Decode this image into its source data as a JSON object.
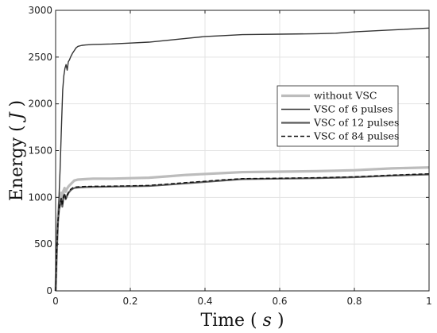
{
  "chart_data": {
    "type": "line",
    "xlabel": "Time",
    "xlabel_unit": "s",
    "ylabel": "Energy",
    "ylabel_unit": "J",
    "xlim": [
      0,
      1
    ],
    "ylim": [
      0,
      3000
    ],
    "xticks": [
      0,
      0.2,
      0.4,
      0.6,
      0.8,
      1
    ],
    "xtick_labels": [
      "0",
      "0.2",
      "0.4",
      "0.6",
      "0.8",
      "1"
    ],
    "yticks": [
      0,
      500,
      1000,
      1500,
      2000,
      2500,
      3000
    ],
    "ytick_labels": [
      "0",
      "500",
      "1000",
      "1500",
      "2000",
      "2500",
      "3000"
    ],
    "grid": true,
    "legend_position": "right",
    "series": [
      {
        "name": "without VSC",
        "color": "#bcbcbc",
        "style": "solid-thick",
        "x": [
          0,
          0.003,
          0.006,
          0.009,
          0.012,
          0.015,
          0.018,
          0.021,
          0.024,
          0.027,
          0.03,
          0.035,
          0.04,
          0.045,
          0.05,
          0.06,
          0.08,
          0.1,
          0.15,
          0.2,
          0.25,
          0.3,
          0.35,
          0.4,
          0.45,
          0.5,
          0.6,
          0.7,
          0.75,
          0.8,
          0.9,
          1.0
        ],
        "y": [
          0,
          450,
          780,
          920,
          1000,
          1050,
          980,
          1070,
          1100,
          1060,
          1090,
          1120,
          1140,
          1160,
          1180,
          1190,
          1195,
          1200,
          1200,
          1205,
          1210,
          1225,
          1240,
          1250,
          1260,
          1270,
          1275,
          1280,
          1285,
          1290,
          1310,
          1320
        ]
      },
      {
        "name": "VSC of 6 pulses",
        "color": "#333333",
        "style": "solid-thin",
        "x": [
          0,
          0.004,
          0.008,
          0.012,
          0.016,
          0.019,
          0.022,
          0.025,
          0.028,
          0.031,
          0.034,
          0.037,
          0.04,
          0.045,
          0.05,
          0.055,
          0.06,
          0.07,
          0.08,
          0.1,
          0.15,
          0.2,
          0.25,
          0.3,
          0.35,
          0.4,
          0.45,
          0.5,
          0.6,
          0.7,
          0.75,
          0.8,
          0.9,
          1.0
        ],
        "y": [
          0,
          500,
          900,
          1300,
          1800,
          2150,
          2300,
          2380,
          2420,
          2360,
          2450,
          2470,
          2500,
          2540,
          2570,
          2600,
          2615,
          2625,
          2630,
          2635,
          2640,
          2650,
          2660,
          2680,
          2700,
          2720,
          2730,
          2740,
          2745,
          2750,
          2755,
          2770,
          2790,
          2810
        ]
      },
      {
        "name": "VSC of 12 pulses",
        "color": "#5a5a5a",
        "style": "solid-medium",
        "x": [
          0,
          0.003,
          0.006,
          0.009,
          0.012,
          0.015,
          0.018,
          0.021,
          0.024,
          0.027,
          0.03,
          0.035,
          0.04,
          0.045,
          0.05,
          0.06,
          0.08,
          0.1,
          0.15,
          0.2,
          0.25,
          0.3,
          0.35,
          0.4,
          0.45,
          0.5,
          0.6,
          0.7,
          0.75,
          0.8,
          0.9,
          1.0
        ],
        "y": [
          0,
          420,
          720,
          860,
          920,
          980,
          900,
          1000,
          1030,
          980,
          1010,
          1050,
          1075,
          1090,
          1100,
          1105,
          1110,
          1112,
          1115,
          1118,
          1122,
          1135,
          1150,
          1165,
          1180,
          1195,
          1200,
          1205,
          1210,
          1215,
          1232,
          1245
        ]
      },
      {
        "name": "VSC of 84 pulses",
        "color": "#111111",
        "style": "dashed",
        "x": [
          0,
          0.003,
          0.006,
          0.009,
          0.012,
          0.015,
          0.018,
          0.021,
          0.024,
          0.027,
          0.03,
          0.035,
          0.04,
          0.045,
          0.05,
          0.06,
          0.08,
          0.1,
          0.15,
          0.2,
          0.25,
          0.3,
          0.35,
          0.4,
          0.45,
          0.5,
          0.6,
          0.7,
          0.75,
          0.8,
          0.9,
          1.0
        ],
        "y": [
          0,
          430,
          730,
          870,
          930,
          990,
          910,
          1010,
          1040,
          990,
          1020,
          1060,
          1085,
          1100,
          1110,
          1112,
          1116,
          1118,
          1120,
          1123,
          1128,
          1142,
          1158,
          1172,
          1188,
          1200,
          1205,
          1210,
          1215,
          1220,
          1238,
          1252
        ]
      }
    ]
  }
}
